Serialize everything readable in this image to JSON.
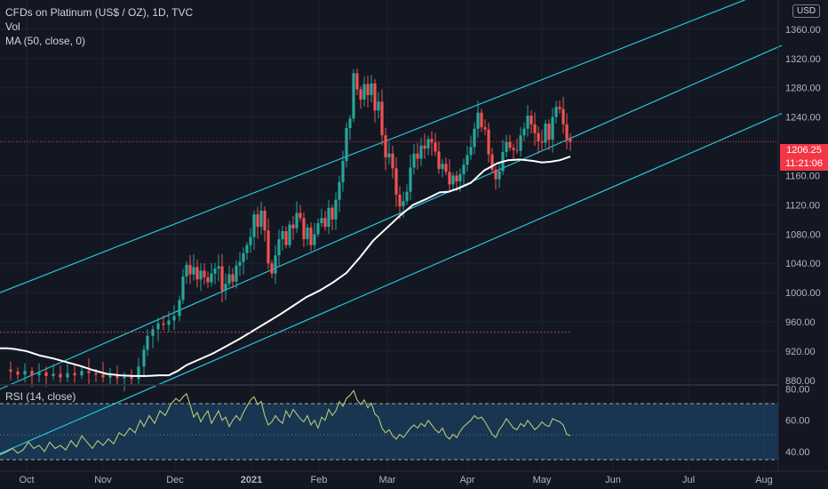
{
  "legend": {
    "title": "CFDs on Platinum (US$ / OZ), 1D, TVC",
    "vol": "Vol",
    "ma": "MA (50, close, 0)",
    "rsi": "RSI (14, close)"
  },
  "currency_badge": "USD",
  "last_price": {
    "value": "1206.25",
    "countdown": "11:21:06"
  },
  "colors": {
    "background": "#131722",
    "up_candle": "#26a69a",
    "down_candle": "#ef5350",
    "channel": "#26c6da",
    "ma_line": "#ffffff",
    "rsi_line": "#b8c97a",
    "rsi_band": "#1e4e79",
    "last_price_badge": "#f23645"
  },
  "chart_data": {
    "type": "candlestick",
    "price_axis": [
      "1360.00",
      "1320.00",
      "1280.00",
      "1240.00",
      "1160.00",
      "1120.00",
      "1080.00",
      "1040.00",
      "1000.00",
      "960.00",
      "920.00",
      "880.00"
    ],
    "price_range": [
      875,
      1400
    ],
    "time_axis": [
      "Oct",
      "Nov",
      "Dec",
      "2021",
      "Feb",
      "Mar",
      "Apr",
      "May",
      "Jun",
      "Jul",
      "Aug"
    ],
    "rsi_axis": [
      "80.00",
      "60.00",
      "40.00"
    ],
    "rsi_range": [
      28,
      82
    ],
    "rsi_bands": [
      70,
      30
    ],
    "rsi_mid": 50,
    "reference_line": 946,
    "last_close": 1206.25,
    "ma_points": [
      [
        0,
        924
      ],
      [
        8,
        924
      ],
      [
        16,
        923
      ],
      [
        30,
        920
      ],
      [
        45,
        914
      ],
      [
        60,
        910
      ],
      [
        75,
        905
      ],
      [
        90,
        900
      ],
      [
        105,
        894
      ],
      [
        120,
        889
      ],
      [
        135,
        887
      ],
      [
        150,
        886
      ],
      [
        165,
        886
      ],
      [
        180,
        887
      ],
      [
        190,
        887
      ],
      [
        200,
        893
      ],
      [
        210,
        901
      ],
      [
        225,
        909
      ],
      [
        240,
        917
      ],
      [
        255,
        927
      ],
      [
        270,
        937
      ],
      [
        285,
        948
      ],
      [
        300,
        959
      ],
      [
        315,
        970
      ],
      [
        330,
        982
      ],
      [
        345,
        994
      ],
      [
        360,
        1003
      ],
      [
        375,
        1014
      ],
      [
        390,
        1027
      ],
      [
        405,
        1048
      ],
      [
        420,
        1071
      ],
      [
        435,
        1088
      ],
      [
        450,
        1105
      ],
      [
        465,
        1120
      ],
      [
        480,
        1128
      ],
      [
        495,
        1137
      ],
      [
        505,
        1138
      ],
      [
        515,
        1142
      ],
      [
        530,
        1150
      ],
      [
        545,
        1167
      ],
      [
        560,
        1177
      ],
      [
        572,
        1181
      ],
      [
        585,
        1182
      ],
      [
        600,
        1180
      ],
      [
        610,
        1178
      ],
      [
        620,
        1179
      ],
      [
        630,
        1181
      ],
      [
        642,
        1186
      ]
    ],
    "candles_path": [
      [
        4,
        895
      ],
      [
        12,
        892
      ],
      [
        20,
        888
      ],
      [
        28,
        893
      ],
      [
        36,
        887
      ],
      [
        44,
        891
      ],
      [
        52,
        886
      ],
      [
        60,
        889
      ],
      [
        68,
        884
      ],
      [
        76,
        890
      ],
      [
        84,
        887
      ],
      [
        92,
        893
      ],
      [
        100,
        890
      ],
      [
        108,
        888
      ],
      [
        116,
        884
      ],
      [
        124,
        887
      ],
      [
        132,
        883
      ],
      [
        140,
        885
      ],
      [
        148,
        882
      ],
      [
        156,
        899
      ],
      [
        162,
        922
      ],
      [
        166,
        941
      ],
      [
        172,
        950
      ],
      [
        178,
        958
      ],
      [
        184,
        956
      ],
      [
        190,
        962
      ],
      [
        196,
        968
      ],
      [
        202,
        990
      ],
      [
        206,
        1022
      ],
      [
        210,
        1038
      ],
      [
        214,
        1025
      ],
      [
        218,
        1035
      ],
      [
        222,
        1018
      ],
      [
        226,
        1030
      ],
      [
        230,
        1021
      ],
      [
        234,
        1014
      ],
      [
        238,
        1026
      ],
      [
        242,
        1033
      ],
      [
        246,
        1036
      ],
      [
        250,
        1003
      ],
      [
        254,
        1012
      ],
      [
        258,
        1025
      ],
      [
        262,
        1015
      ],
      [
        266,
        1037
      ],
      [
        270,
        1042
      ],
      [
        274,
        1054
      ],
      [
        278,
        1065
      ],
      [
        282,
        1076
      ],
      [
        286,
        1107
      ],
      [
        290,
        1090
      ],
      [
        294,
        1112
      ],
      [
        298,
        1085
      ],
      [
        302,
        1040
      ],
      [
        306,
        1026
      ],
      [
        310,
        1051
      ],
      [
        314,
        1073
      ],
      [
        318,
        1084
      ],
      [
        322,
        1065
      ],
      [
        326,
        1093
      ],
      [
        330,
        1088
      ],
      [
        334,
        1109
      ],
      [
        338,
        1102
      ],
      [
        342,
        1073
      ],
      [
        346,
        1089
      ],
      [
        350,
        1065
      ],
      [
        354,
        1080
      ],
      [
        358,
        1095
      ],
      [
        362,
        1102
      ],
      [
        366,
        1090
      ],
      [
        370,
        1116
      ],
      [
        374,
        1100
      ],
      [
        378,
        1127
      ],
      [
        382,
        1151
      ],
      [
        386,
        1180
      ],
      [
        390,
        1225
      ],
      [
        394,
        1238
      ],
      [
        398,
        1300
      ],
      [
        402,
        1278
      ],
      [
        406,
        1264
      ],
      [
        410,
        1285
      ],
      [
        414,
        1270
      ],
      [
        418,
        1286
      ],
      [
        422,
        1249
      ],
      [
        426,
        1261
      ],
      [
        430,
        1215
      ],
      [
        434,
        1185
      ],
      [
        438,
        1190
      ],
      [
        442,
        1170
      ],
      [
        446,
        1134
      ],
      [
        450,
        1118
      ],
      [
        454,
        1125
      ],
      [
        458,
        1138
      ],
      [
        462,
        1171
      ],
      [
        466,
        1190
      ],
      [
        470,
        1183
      ],
      [
        474,
        1201
      ],
      [
        478,
        1197
      ],
      [
        482,
        1210
      ],
      [
        486,
        1205
      ],
      [
        490,
        1193
      ],
      [
        494,
        1169
      ],
      [
        498,
        1176
      ],
      [
        502,
        1165
      ],
      [
        506,
        1148
      ],
      [
        510,
        1160
      ],
      [
        514,
        1152
      ],
      [
        518,
        1162
      ],
      [
        522,
        1175
      ],
      [
        526,
        1188
      ],
      [
        530,
        1199
      ],
      [
        534,
        1224
      ],
      [
        538,
        1246
      ],
      [
        542,
        1226
      ],
      [
        546,
        1223
      ],
      [
        550,
        1189
      ],
      [
        554,
        1168
      ],
      [
        558,
        1155
      ],
      [
        562,
        1166
      ],
      [
        566,
        1192
      ],
      [
        570,
        1206
      ],
      [
        574,
        1198
      ],
      [
        578,
        1195
      ],
      [
        582,
        1194
      ],
      [
        586,
        1215
      ],
      [
        590,
        1224
      ],
      [
        594,
        1242
      ],
      [
        598,
        1230
      ],
      [
        602,
        1218
      ],
      [
        606,
        1207
      ],
      [
        610,
        1205
      ],
      [
        614,
        1231
      ],
      [
        618,
        1209
      ],
      [
        622,
        1240
      ],
      [
        626,
        1254
      ],
      [
        630,
        1251
      ],
      [
        634,
        1230
      ],
      [
        638,
        1210
      ],
      [
        642,
        1206
      ]
    ],
    "rsi_points": [
      [
        0,
        38
      ],
      [
        8,
        40
      ],
      [
        14,
        42
      ],
      [
        20,
        39
      ],
      [
        26,
        41
      ],
      [
        32,
        46
      ],
      [
        38,
        42
      ],
      [
        44,
        44
      ],
      [
        50,
        40
      ],
      [
        56,
        46
      ],
      [
        62,
        42
      ],
      [
        68,
        44
      ],
      [
        74,
        41
      ],
      [
        80,
        47
      ],
      [
        86,
        43
      ],
      [
        92,
        50
      ],
      [
        98,
        46
      ],
      [
        104,
        42
      ],
      [
        110,
        47
      ],
      [
        116,
        44
      ],
      [
        122,
        48
      ],
      [
        128,
        45
      ],
      [
        134,
        52
      ],
      [
        140,
        50
      ],
      [
        146,
        55
      ],
      [
        152,
        52
      ],
      [
        158,
        60
      ],
      [
        162,
        56
      ],
      [
        168,
        63
      ],
      [
        174,
        58
      ],
      [
        180,
        66
      ],
      [
        186,
        63
      ],
      [
        192,
        70
      ],
      [
        198,
        74
      ],
      [
        202,
        72
      ],
      [
        206,
        75
      ],
      [
        210,
        77
      ],
      [
        214,
        70
      ],
      [
        218,
        62
      ],
      [
        222,
        65
      ],
      [
        226,
        59
      ],
      [
        230,
        63
      ],
      [
        234,
        66
      ],
      [
        238,
        58
      ],
      [
        242,
        62
      ],
      [
        246,
        66
      ],
      [
        250,
        60
      ],
      [
        254,
        62
      ],
      [
        258,
        56
      ],
      [
        262,
        60
      ],
      [
        266,
        63
      ],
      [
        270,
        60
      ],
      [
        274,
        65
      ],
      [
        278,
        69
      ],
      [
        282,
        73
      ],
      [
        286,
        75
      ],
      [
        290,
        70
      ],
      [
        294,
        72
      ],
      [
        298,
        63
      ],
      [
        302,
        57
      ],
      [
        306,
        59
      ],
      [
        310,
        63
      ],
      [
        314,
        60
      ],
      [
        318,
        58
      ],
      [
        322,
        66
      ],
      [
        326,
        62
      ],
      [
        330,
        67
      ],
      [
        334,
        64
      ],
      [
        338,
        61
      ],
      [
        342,
        59
      ],
      [
        346,
        63
      ],
      [
        350,
        57
      ],
      [
        354,
        60
      ],
      [
        358,
        55
      ],
      [
        362,
        62
      ],
      [
        366,
        60
      ],
      [
        370,
        67
      ],
      [
        374,
        63
      ],
      [
        378,
        66
      ],
      [
        382,
        72
      ],
      [
        386,
        69
      ],
      [
        390,
        74
      ],
      [
        394,
        76
      ],
      [
        398,
        79
      ],
      [
        402,
        73
      ],
      [
        406,
        70
      ],
      [
        410,
        73
      ],
      [
        414,
        68
      ],
      [
        418,
        71
      ],
      [
        422,
        64
      ],
      [
        426,
        62
      ],
      [
        430,
        55
      ],
      [
        434,
        52
      ],
      [
        438,
        54
      ],
      [
        442,
        50
      ],
      [
        446,
        48
      ],
      [
        450,
        51
      ],
      [
        454,
        49
      ],
      [
        458,
        52
      ],
      [
        462,
        55
      ],
      [
        466,
        57
      ],
      [
        470,
        55
      ],
      [
        474,
        58
      ],
      [
        478,
        56
      ],
      [
        482,
        60
      ],
      [
        486,
        57
      ],
      [
        490,
        54
      ],
      [
        494,
        52
      ],
      [
        498,
        55
      ],
      [
        502,
        50
      ],
      [
        506,
        48
      ],
      [
        510,
        51
      ],
      [
        514,
        49
      ],
      [
        518,
        53
      ],
      [
        522,
        56
      ],
      [
        526,
        58
      ],
      [
        530,
        60
      ],
      [
        534,
        63
      ],
      [
        538,
        61
      ],
      [
        542,
        62
      ],
      [
        546,
        59
      ],
      [
        550,
        55
      ],
      [
        554,
        51
      ],
      [
        558,
        49
      ],
      [
        562,
        54
      ],
      [
        566,
        57
      ],
      [
        570,
        61
      ],
      [
        574,
        58
      ],
      [
        578,
        55
      ],
      [
        582,
        54
      ],
      [
        586,
        58
      ],
      [
        590,
        56
      ],
      [
        594,
        60
      ],
      [
        598,
        57
      ],
      [
        602,
        54
      ],
      [
        606,
        56
      ],
      [
        610,
        59
      ],
      [
        614,
        57
      ],
      [
        618,
        56
      ],
      [
        622,
        61
      ],
      [
        626,
        60
      ],
      [
        630,
        59
      ],
      [
        634,
        57
      ],
      [
        638,
        51
      ],
      [
        642,
        50
      ]
    ],
    "channel_lines": [
      {
        "from": [
          0,
          1000
        ],
        "to": [
          880,
          1420
        ]
      },
      {
        "from": [
          0,
          868
        ],
        "to": [
          880,
          1338
        ]
      },
      {
        "from": [
          0,
          780
        ],
        "to": [
          880,
          1245
        ]
      }
    ]
  }
}
